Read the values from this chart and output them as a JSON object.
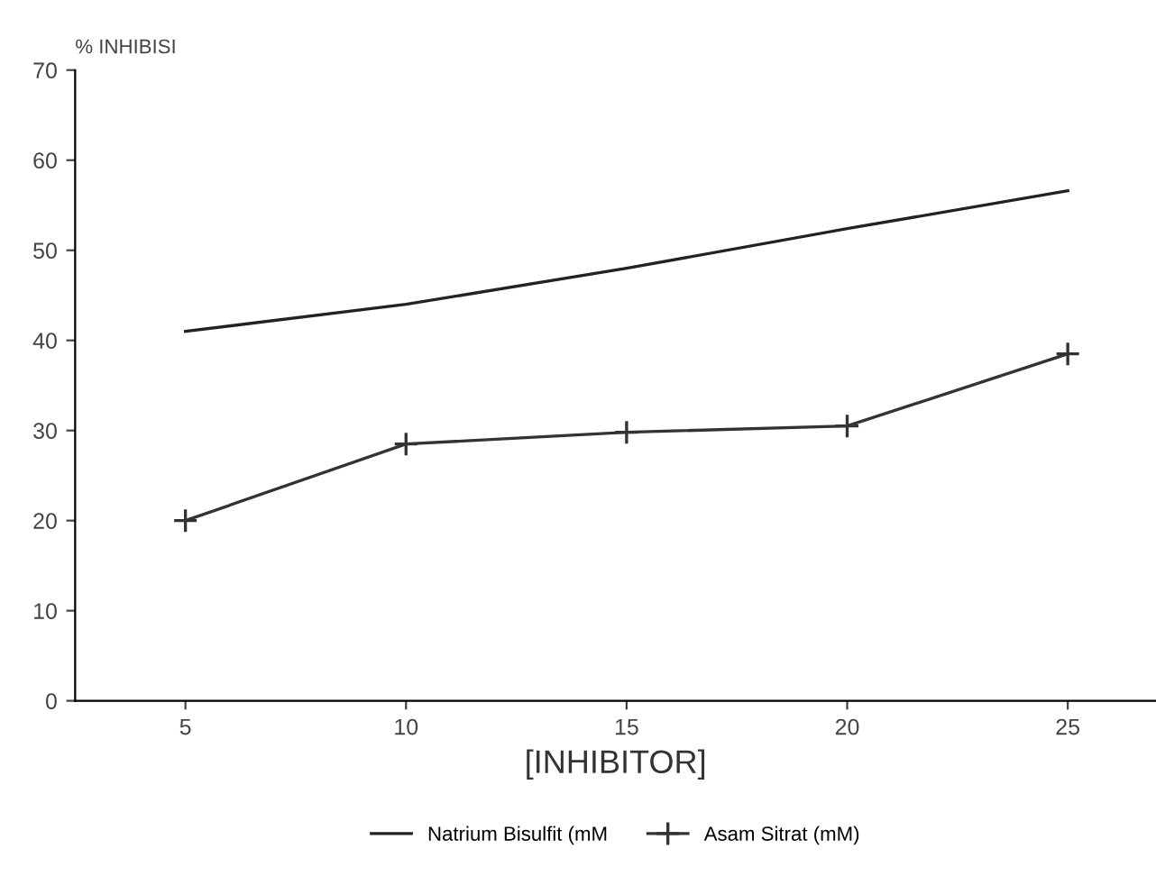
{
  "chart_data": {
    "type": "line",
    "ylabel": "% INHIBISI",
    "xlabel": "[INHIBITOR]",
    "x": [
      5,
      10,
      15,
      20,
      25
    ],
    "series": [
      {
        "name": "Natrium Bisulfit (mM",
        "color": "#222222",
        "values": [
          41,
          44,
          48,
          52.4,
          56.6
        ],
        "marker": "none"
      },
      {
        "name": "Asam Sitrat (mM)",
        "color": "#333333",
        "values": [
          20,
          28.5,
          29.8,
          30.5,
          38.5
        ],
        "marker": "cross"
      }
    ],
    "xlim": [
      2.5,
      27
    ],
    "ylim": [
      0,
      70
    ],
    "xticks": [
      5,
      10,
      15,
      20,
      25
    ],
    "yticks": [
      0,
      10,
      20,
      30,
      40,
      50,
      60,
      70
    ],
    "grid": false,
    "legend": "bottom",
    "line_style": "solid"
  }
}
